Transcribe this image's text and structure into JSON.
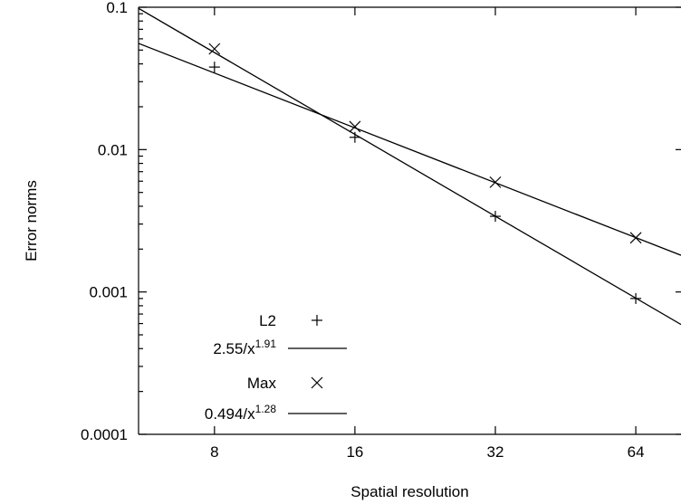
{
  "chart_data": {
    "type": "scatter",
    "xlabel": "Spatial resolution",
    "ylabel": "Error norms",
    "xscale": "log2",
    "yscale": "log10",
    "xlim": [
      5.5,
      80
    ],
    "ylim": [
      0.0001,
      0.1
    ],
    "x_ticks": [
      8,
      16,
      32,
      64
    ],
    "x_tick_labels": [
      "8",
      "16",
      "32",
      "64"
    ],
    "y_ticks": [
      0.0001,
      0.001,
      0.01,
      0.1
    ],
    "y_tick_labels": [
      "0.0001",
      "0.001",
      "0.01",
      "0.1"
    ],
    "grid": false,
    "legend_position": "bottom-left",
    "series": [
      {
        "name": "L2",
        "kind": "points",
        "marker": "plus",
        "x": [
          8,
          16,
          32,
          64
        ],
        "y": [
          0.038,
          0.0122,
          0.0034,
          0.0009
        ]
      },
      {
        "name_prefix": "2.55/x",
        "name_exponent": "1.91",
        "kind": "fit",
        "coefficient": 2.55,
        "exponent": 1.91
      },
      {
        "name": "Max",
        "kind": "points",
        "marker": "cross",
        "x": [
          8,
          16,
          32,
          64
        ],
        "y": [
          0.051,
          0.0145,
          0.0059,
          0.0024
        ]
      },
      {
        "name_prefix": "0.494/x",
        "name_exponent": "1.28",
        "kind": "fit",
        "coefficient": 0.494,
        "exponent": 1.28
      }
    ]
  }
}
